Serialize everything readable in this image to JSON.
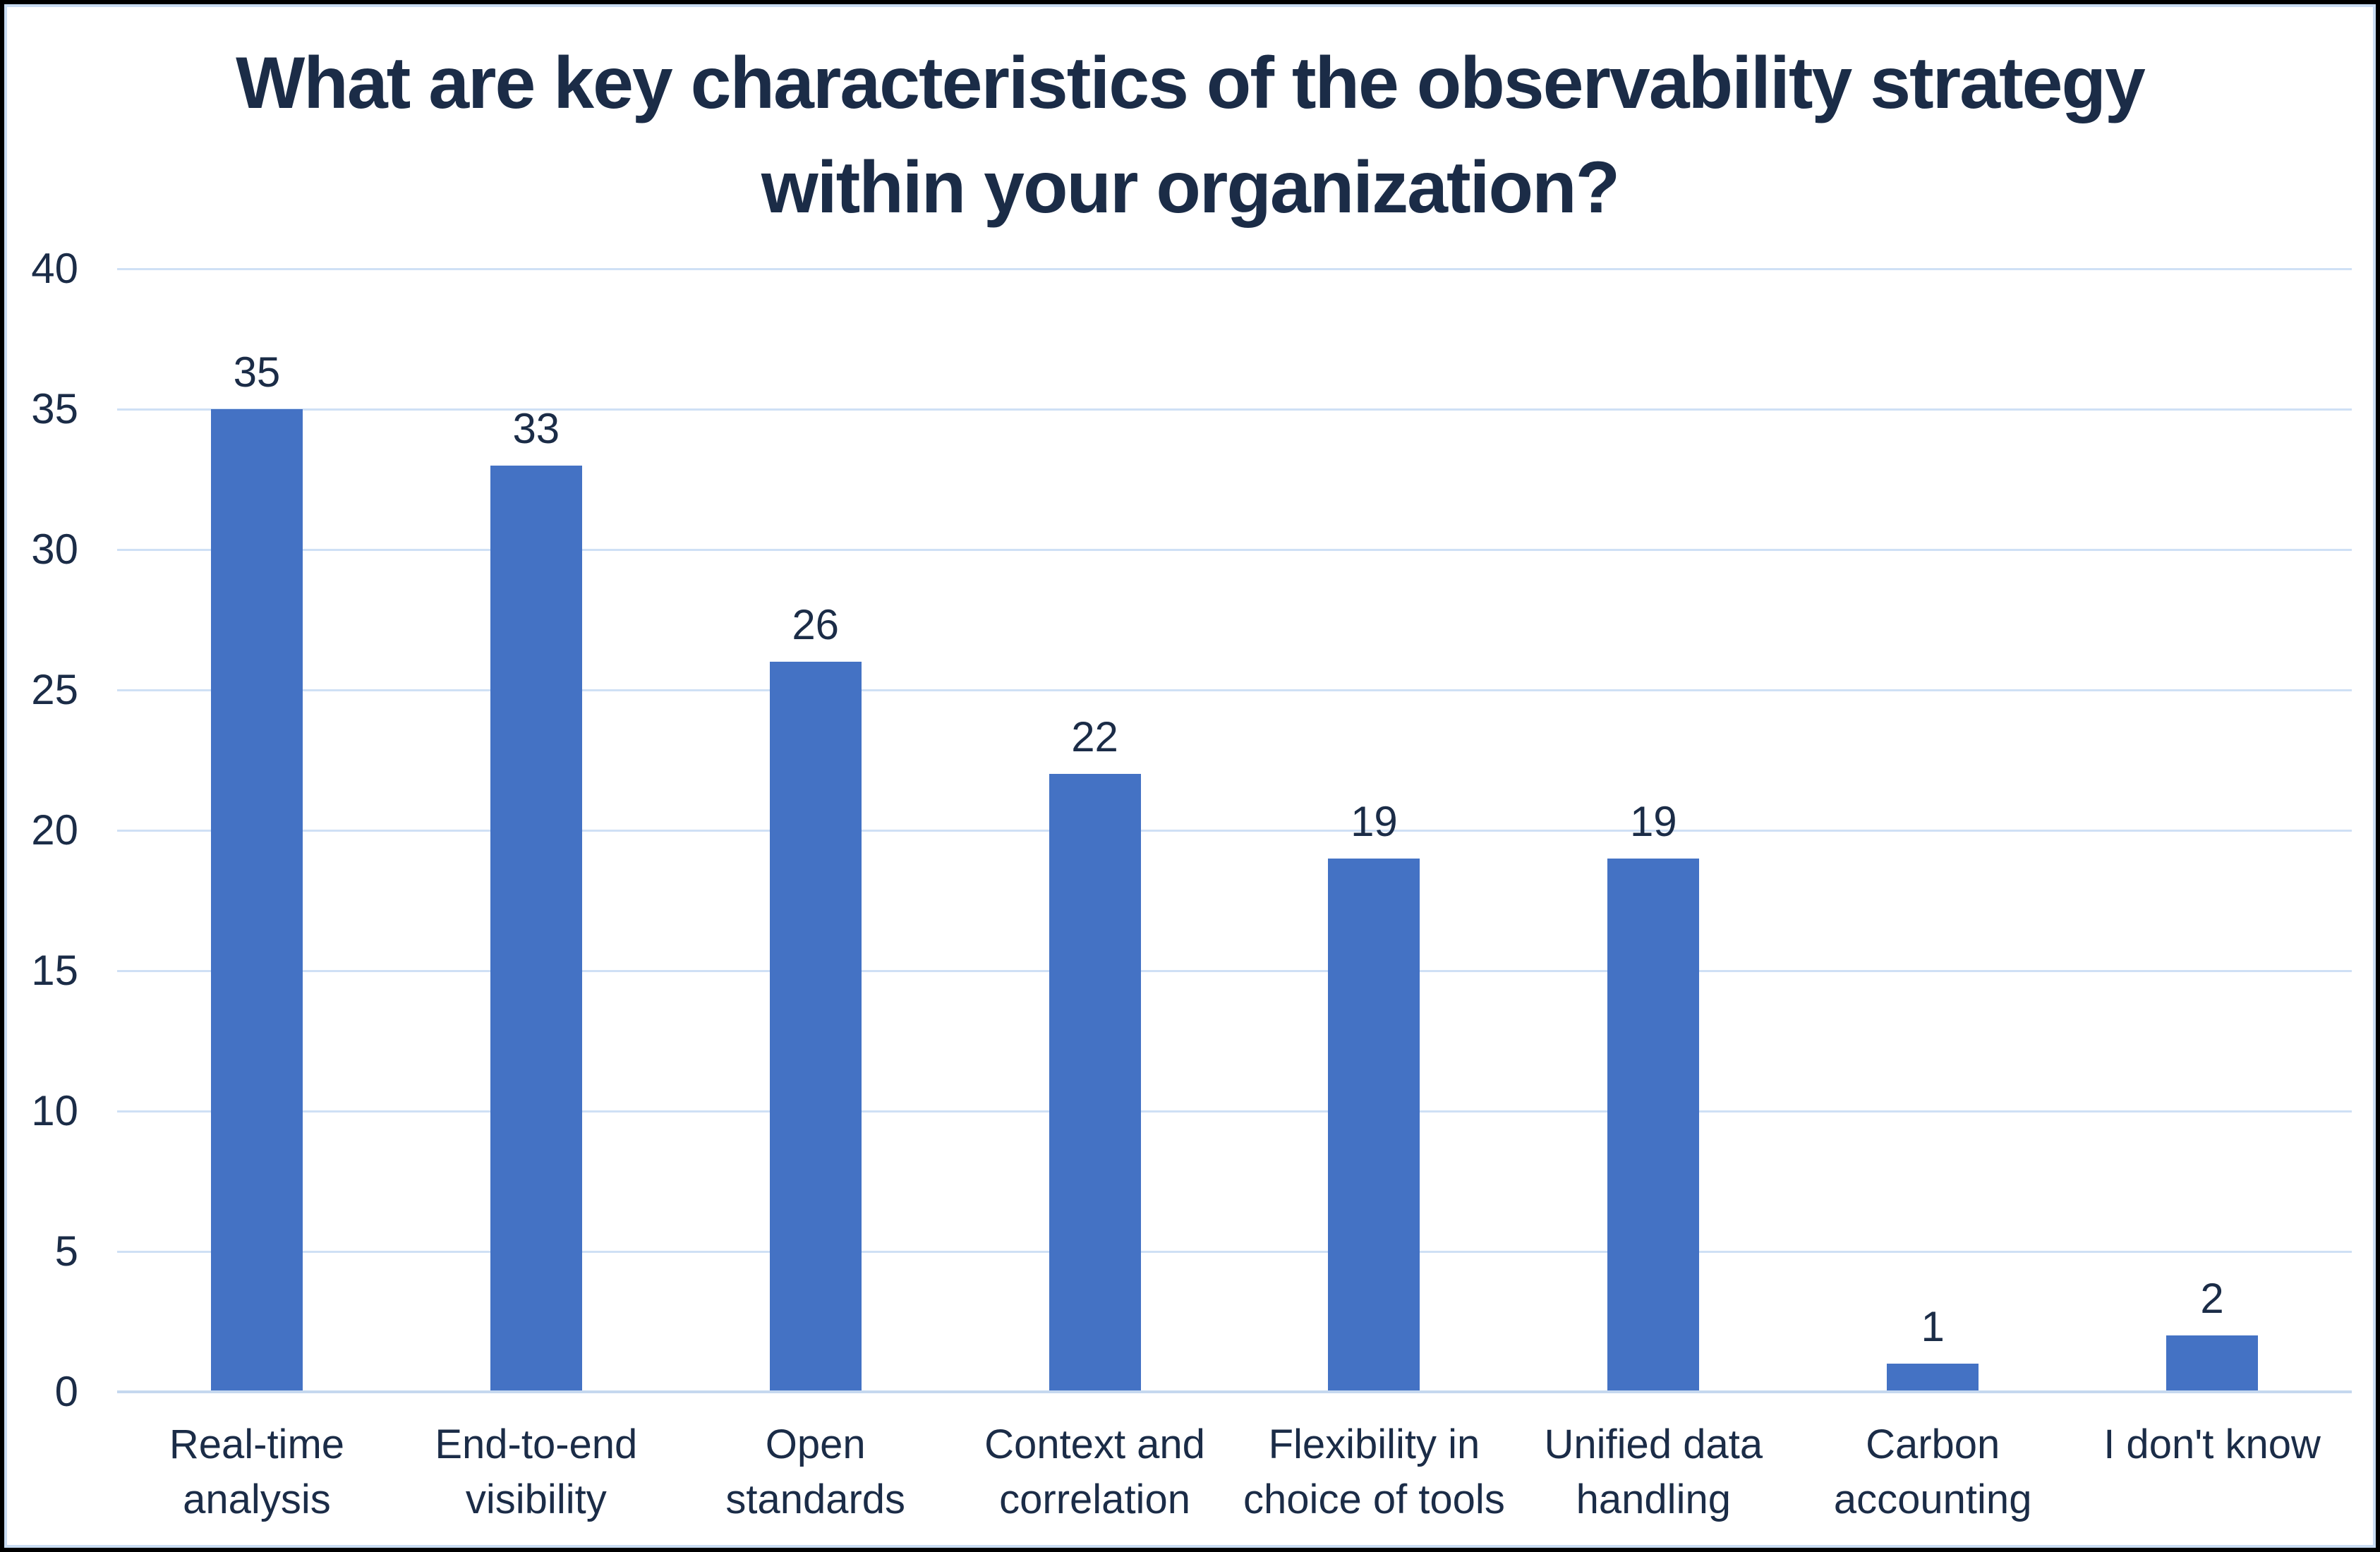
{
  "title": {
    "line1": "What are key characteristics of the observability strategy",
    "line2": "within your organization?"
  },
  "frame": {
    "background": "#FFFFFF",
    "border_color": "#000000",
    "inner_border_color": "#C9DCF2"
  },
  "chart_data": {
    "type": "bar",
    "title": "What are key characteristics of the observability strategy within your organization?",
    "xlabel": "",
    "ylabel": "",
    "categories": [
      "Real-time analysis",
      "End-to-end visibility",
      "Open standards",
      "Context and correlation",
      "Flexibility in choice of tools",
      "Unified data handling",
      "Carbon accounting",
      "I don't know"
    ],
    "category_lines": [
      [
        "Real-time",
        "analysis"
      ],
      [
        "End-to-end",
        "visibility"
      ],
      [
        "Open",
        "standards"
      ],
      [
        "Context and",
        "correlation"
      ],
      [
        "Flexibility in",
        "choice of tools"
      ],
      [
        "Unified data",
        "handling"
      ],
      [
        "Carbon",
        "accounting"
      ],
      [
        "I don't know"
      ]
    ],
    "values": [
      35,
      33,
      26,
      22,
      19,
      19,
      1,
      2
    ],
    "data_labels": [
      "35",
      "33",
      "26",
      "22",
      "19",
      "19",
      "1",
      "2"
    ],
    "y_ticks": [
      40,
      35,
      30,
      25,
      20,
      15,
      10,
      5,
      0
    ],
    "ylim": [
      0,
      40
    ],
    "grid": true,
    "legend_position": "none",
    "bar_color": "#4472C4",
    "gridline_color": "#CFE0F5",
    "axis_line_color": "#C5D8EF",
    "text_color": "#1B2C47"
  }
}
